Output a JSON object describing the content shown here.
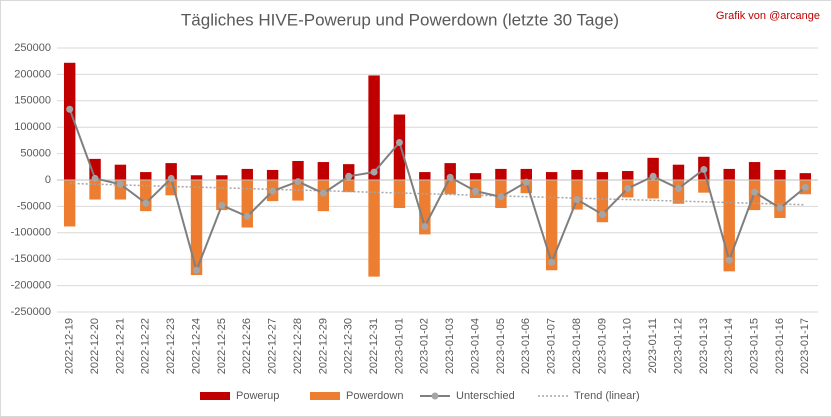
{
  "chart_data": {
    "type": "bar",
    "title": "Tägliches HIVE-Powerup und Powerdown (letzte 30 Tage)",
    "annotation": "Grafik von @arcange",
    "categories": [
      "2022-12-19",
      "2022-12-20",
      "2022-12-21",
      "2022-12-22",
      "2022-12-23",
      "2022-12-24",
      "2022-12-25",
      "2022-12-26",
      "2022-12-27",
      "2022-12-28",
      "2022-12-29",
      "2022-12-30",
      "2022-12-31",
      "2023-01-01",
      "2023-01-02",
      "2023-01-03",
      "2023-01-04",
      "2023-01-05",
      "2023-01-06",
      "2023-01-07",
      "2023-01-08",
      "2023-01-09",
      "2023-01-10",
      "2023-01-11",
      "2023-01-12",
      "2023-01-13",
      "2023-01-14",
      "2023-01-15",
      "2023-01-16",
      "2023-01-17"
    ],
    "series": [
      {
        "name": "Powerup",
        "color": "#c00000",
        "type": "bar",
        "values": [
          222000,
          40000,
          29000,
          15000,
          32000,
          9000,
          9000,
          21000,
          19000,
          36000,
          34000,
          30000,
          198000,
          124000,
          15000,
          32000,
          13000,
          21000,
          21000,
          15000,
          19000,
          15000,
          17000,
          42000,
          29000,
          44000,
          21000,
          34000,
          19000,
          13000
        ]
      },
      {
        "name": "Powerdown",
        "color": "#ed7d31",
        "type": "bar",
        "values": [
          -88000,
          -37000,
          -37000,
          -59000,
          -29000,
          -180000,
          -57000,
          -90000,
          -40000,
          -39000,
          -59000,
          -23000,
          -183000,
          -53000,
          -103000,
          -27000,
          -34000,
          -53000,
          -25000,
          -171000,
          -56000,
          -80000,
          -33000,
          -35000,
          -45000,
          -24000,
          -173000,
          -57000,
          -72000,
          -27000
        ]
      },
      {
        "name": "Unterschied",
        "color": "#a5a5a5",
        "type": "line",
        "values": [
          134000,
          3000,
          -8000,
          -44000,
          3000,
          -171000,
          -48000,
          -69000,
          -21000,
          -3000,
          -25000,
          7000,
          15000,
          71000,
          -88000,
          5000,
          -21000,
          -32000,
          -4000,
          -156000,
          -37000,
          -65000,
          -16000,
          7000,
          -16000,
          20000,
          -152000,
          -23000,
          -53000,
          -14000
        ]
      }
    ],
    "trendline": {
      "name": "Trend (linear)",
      "color": "#a5a5a5"
    },
    "ylim": [
      -250000,
      250000
    ],
    "yticks": [
      -250000,
      -200000,
      -150000,
      -100000,
      -50000,
      0,
      50000,
      100000,
      150000,
      200000,
      250000
    ],
    "grid": true
  }
}
